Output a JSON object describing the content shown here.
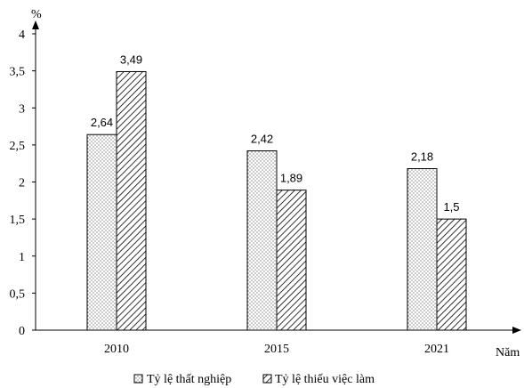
{
  "chart_data": {
    "type": "bar",
    "categories": [
      "2010",
      "2015",
      "2021"
    ],
    "series": [
      {
        "name": "Tỷ lệ thất nghiệp",
        "values": [
          2.64,
          2.42,
          2.18
        ],
        "labels": [
          "2,64",
          "2,42",
          "2,18"
        ],
        "pattern": "dots"
      },
      {
        "name": "Tỷ lệ thiếu việc làm",
        "values": [
          3.49,
          1.89,
          1.5
        ],
        "labels": [
          "3,49",
          "1,89",
          "1,5"
        ],
        "pattern": "hatch"
      }
    ],
    "xlabel": "Năm",
    "ylabel": "%",
    "ylim": [
      0,
      4
    ],
    "yticks": [
      0,
      0.5,
      1,
      1.5,
      2,
      2.5,
      3,
      3.5,
      4
    ],
    "ytick_labels": [
      "0",
      "0,5",
      "1",
      "1,5",
      "2",
      "2,5",
      "3",
      "3,5",
      "4"
    ],
    "grid": false,
    "legend_position": "bottom"
  }
}
